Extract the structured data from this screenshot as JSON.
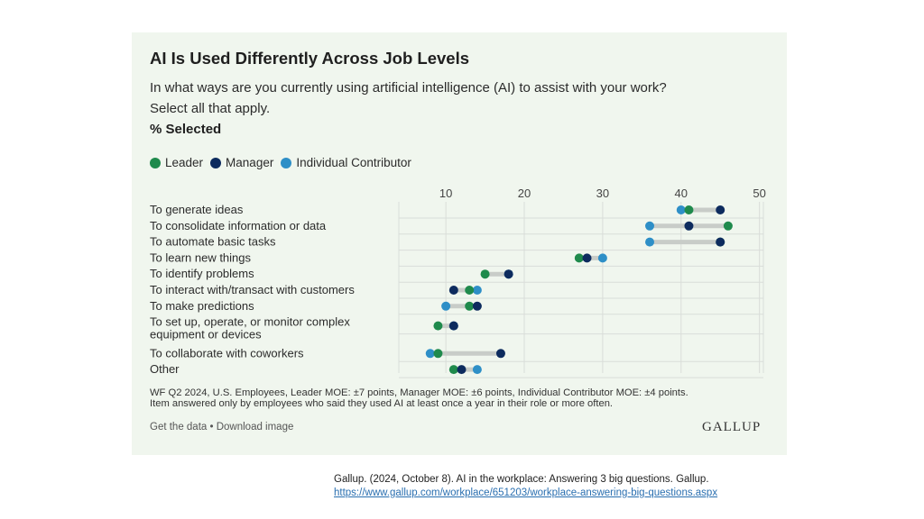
{
  "header": {
    "title": "AI Is Used Differently Across Job Levels",
    "question_line1": "In what ways are you currently using artificial intelligence (AI) to assist with your work?",
    "question_line2": "Select all that apply.",
    "measure": "% Selected"
  },
  "colors": {
    "leader": "#1f8a4c",
    "manager": "#0d2b5e",
    "ic": "#2e8fc7",
    "bar": "#c8ccc8",
    "grid": "#d9ddd9",
    "axis_text": "#444444"
  },
  "chart_data": {
    "type": "dot",
    "x_ticks": [
      10,
      20,
      30,
      40,
      50
    ],
    "xlim": [
      4,
      50.5
    ],
    "legend": [
      {
        "key": "leader",
        "name": "Leader"
      },
      {
        "key": "manager",
        "name": "Manager"
      },
      {
        "key": "ic",
        "name": "Individual Contributor"
      }
    ],
    "categories": [
      {
        "lines": [
          "To generate ideas"
        ],
        "leader": 41,
        "manager": 45,
        "ic": 40
      },
      {
        "lines": [
          "To consolidate information or data"
        ],
        "leader": 46,
        "manager": 41,
        "ic": 36
      },
      {
        "lines": [
          "To automate basic tasks"
        ],
        "leader": 45,
        "manager": 45,
        "ic": 36
      },
      {
        "lines": [
          "To learn new things"
        ],
        "leader": 27,
        "manager": 28,
        "ic": 30
      },
      {
        "lines": [
          "To identify problems"
        ],
        "leader": 15,
        "manager": 18,
        "ic": 18
      },
      {
        "lines": [
          "To interact with/transact with customers"
        ],
        "leader": 13,
        "manager": 11,
        "ic": 14
      },
      {
        "lines": [
          "To make predictions"
        ],
        "leader": 13,
        "manager": 14,
        "ic": 10
      },
      {
        "lines": [
          "To set up, operate, or monitor complex",
          "equipment or devices"
        ],
        "leader": 9,
        "manager": 11,
        "ic": 11
      },
      {
        "lines": [
          "To collaborate with coworkers"
        ],
        "leader": 9,
        "manager": 17,
        "ic": 8
      },
      {
        "lines": [
          "Other"
        ],
        "leader": 11,
        "manager": 12,
        "ic": 14
      }
    ]
  },
  "footer": {
    "note_line1": "WF Q2 2024, U.S. Employees, Leader MOE: ±7 points, Manager MOE: ±6 points, Individual Contributor MOE: ±4 points.",
    "note_line2": "Item answered only by employees who said they used AI at least once a year in their role or more often.",
    "links": "Get the data • Download image",
    "logo": "GALLUP"
  },
  "citation": {
    "line1": "Gallup. (2024, October 8). AI in the workplace: Answering 3 big questions. Gallup.",
    "url": "https://www.gallup.com/workplace/651203/workplace-answering-big-questions.aspx"
  }
}
